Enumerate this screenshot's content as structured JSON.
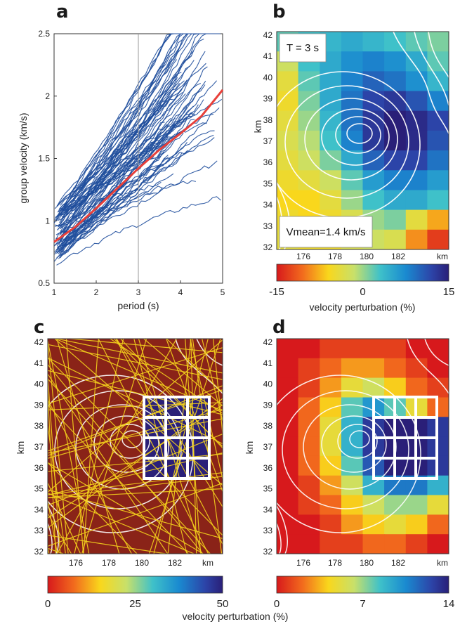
{
  "chart_data": [
    {
      "panel": "a",
      "type": "line",
      "xlabel": "period (s)",
      "ylabel": "group velocity (km/s)",
      "xlim": [
        1,
        5
      ],
      "ylim": [
        0.5,
        2.5
      ],
      "xticks": [
        "1",
        "2",
        "3",
        "4",
        "5"
      ],
      "yticks": [
        "0.5",
        "1",
        "1.5",
        "2",
        "2.5"
      ],
      "marker_line_x": 3,
      "series": [
        {
          "x": [
            1,
            1.5,
            2,
            2.5,
            3,
            3.5,
            4,
            4.5,
            5
          ],
          "values": [
            0.83,
            0.95,
            1.1,
            1.26,
            1.42,
            1.57,
            1.7,
            1.84,
            2.05
          ]
        }
      ],
      "individual_curves_count": 80,
      "colors": {
        "curves": "#1f4e9c",
        "mean": "#e8403a",
        "marker": "#9a9a9a"
      }
    },
    {
      "panel": "b",
      "type": "heatmap",
      "annotations": [
        "T = 3 s",
        "Vmean=1.4 km/s"
      ],
      "xlabel_unit": "km",
      "ylabel": "km",
      "xticks": [
        "176",
        "178",
        "180",
        "182"
      ],
      "yticks": [
        "32",
        "33",
        "34",
        "35",
        "36",
        "37",
        "38",
        "39",
        "40",
        "41",
        "42"
      ],
      "colorbar": {
        "label": "velocity perturbation (%)",
        "ticks": [
          "-15",
          "0",
          "15"
        ],
        "min": -15,
        "max": 15
      },
      "grid_values": [
        [
          2,
          3,
          4,
          5,
          4,
          3,
          2,
          1
        ],
        [
          -2,
          3,
          5,
          7,
          8,
          7,
          5,
          2
        ],
        [
          -4,
          2,
          5,
          8,
          10,
          9,
          7,
          4
        ],
        [
          -5,
          1,
          5,
          9,
          12,
          13,
          11,
          8
        ],
        [
          -4,
          0,
          4,
          9,
          13,
          15,
          14,
          12
        ],
        [
          -3,
          -1,
          3,
          8,
          13,
          15,
          14,
          11
        ],
        [
          -4,
          -2,
          1,
          5,
          10,
          12,
          12,
          9
        ],
        [
          -5,
          -4,
          -2,
          2,
          6,
          8,
          8,
          6
        ],
        [
          -6,
          -6,
          -4,
          0,
          3,
          5,
          5,
          3
        ],
        [
          -5,
          -6,
          -5,
          -3,
          0,
          1,
          -4,
          -8
        ],
        [
          -4,
          -5,
          -5,
          -3,
          -2,
          -3,
          -9,
          -13
        ]
      ]
    },
    {
      "panel": "c",
      "type": "heatmap",
      "ylabel": "km",
      "xlabel_unit": "km",
      "xticks": [
        "176",
        "178",
        "180",
        "182"
      ],
      "yticks": [
        "32",
        "33",
        "34",
        "35",
        "36",
        "37",
        "38",
        "39",
        "40",
        "41",
        "42"
      ],
      "colorbar": {
        "ticks": [
          "0",
          "25",
          "50"
        ],
        "min": 0,
        "max": 50
      },
      "background_value": 0,
      "anomaly_value": 50,
      "ray_color": "#f4d21c"
    },
    {
      "panel": "d",
      "type": "heatmap",
      "ylabel": "km",
      "xlabel_unit": "km",
      "xticks": [
        "176",
        "178",
        "180",
        "182"
      ],
      "yticks": [
        "32",
        "33",
        "34",
        "35",
        "36",
        "37",
        "38",
        "39",
        "40",
        "41",
        "42"
      ],
      "colorbar": {
        "ticks": [
          "0",
          "7",
          "14"
        ],
        "min": 0,
        "max": 14
      },
      "grid_values": [
        [
          0,
          0,
          1,
          1,
          1,
          1,
          0,
          0
        ],
        [
          0,
          1,
          2,
          3,
          3,
          2,
          1,
          0
        ],
        [
          0,
          1,
          3,
          5,
          6,
          4,
          2,
          1
        ],
        [
          0,
          2,
          4,
          8,
          10,
          8,
          5,
          2
        ],
        [
          0,
          2,
          5,
          9,
          13,
          14,
          14,
          13
        ],
        [
          0,
          2,
          5,
          9,
          13,
          14,
          14,
          13
        ],
        [
          0,
          2,
          4,
          8,
          12,
          14,
          14,
          13
        ],
        [
          0,
          1,
          3,
          6,
          9,
          11,
          11,
          9
        ],
        [
          0,
          1,
          2,
          4,
          6,
          7,
          7,
          5
        ],
        [
          0,
          0,
          1,
          3,
          4,
          5,
          4,
          2
        ],
        [
          0,
          0,
          1,
          1,
          2,
          2,
          1,
          0
        ]
      ]
    }
  ],
  "shared_xlabel": "velocity perturbation (%)",
  "panel_labels": [
    "a",
    "b",
    "c",
    "d"
  ]
}
